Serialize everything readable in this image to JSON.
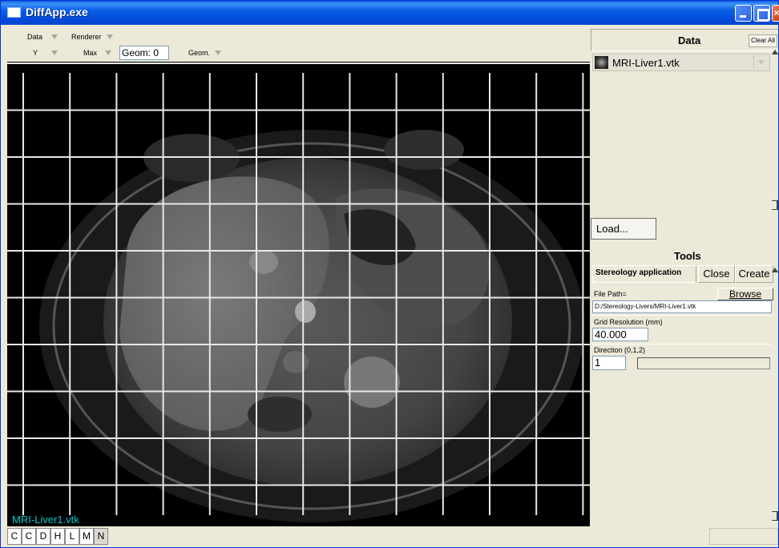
{
  "window": {
    "title": "DiffApp.exe"
  },
  "toolbar": {
    "data_label": "Data",
    "renderer_label": "Renderer",
    "y_label": "Y",
    "max_label": "Max",
    "geom_value": "Geom: 0",
    "geom_label": "Geom."
  },
  "viewer": {
    "overlay_label": "MRI-Liver1.vtk",
    "grid_columns": 12,
    "grid_rows": 10
  },
  "bottombar": {
    "buttons": [
      {
        "label": "C",
        "active": false
      },
      {
        "label": "C",
        "active": false
      },
      {
        "label": "D",
        "active": false
      },
      {
        "label": "H",
        "active": false
      },
      {
        "label": "L",
        "active": false
      },
      {
        "label": "M",
        "active": false
      },
      {
        "label": "N",
        "active": true
      }
    ]
  },
  "data_panel": {
    "title": "Data",
    "clear_all": "Clear All",
    "items": [
      {
        "label": "MRI-Liver1.vtk"
      }
    ],
    "load_button": "Load..."
  },
  "tools_panel": {
    "title": "Tools",
    "tab_label": "Stereology application",
    "close_button": "Close",
    "create_button": "Create",
    "file_path_label": "File Path=",
    "browse_button": "Browse",
    "file_path_value": "D:/Stereology-Livers/MRI-Liver1.vtk",
    "grid_resolution_label": "Grid Resolution (mm)",
    "grid_resolution_value": "40.000",
    "direction_label": "Direction (0,1,2)",
    "direction_value": "1"
  },
  "colors": {
    "title_bar": "#0a5fe6",
    "overlay_label": "#00c8c8",
    "window_bg": "#ece9d8"
  }
}
